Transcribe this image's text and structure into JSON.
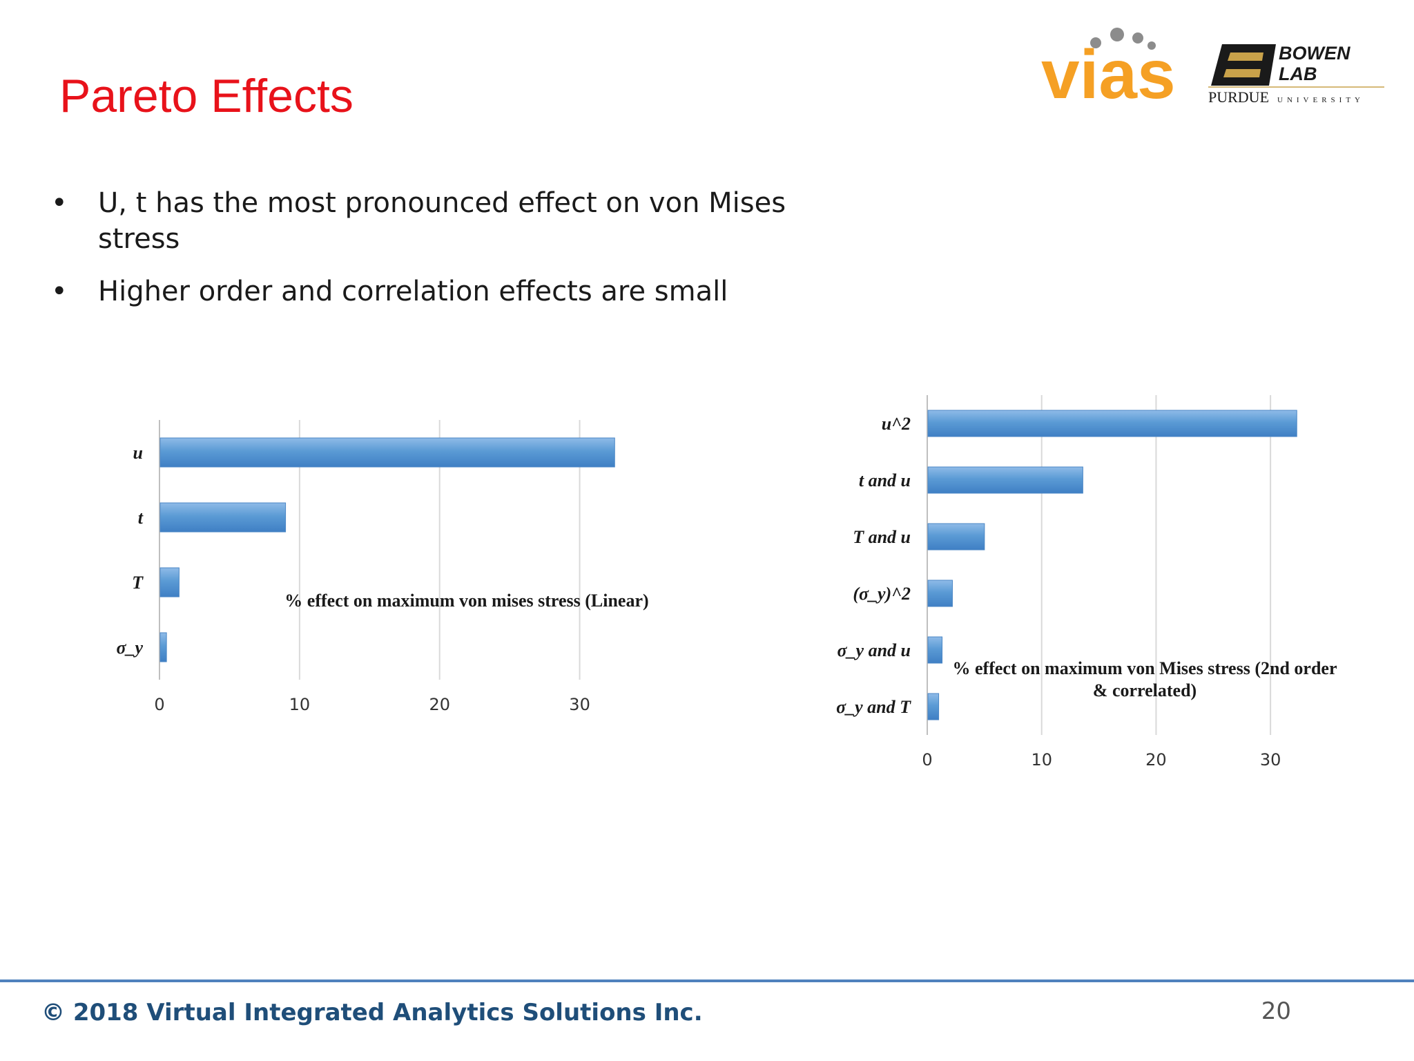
{
  "slide": {
    "title": "Pareto Effects",
    "bullets": [
      "U, t has the most pronounced effect on von Mises stress",
      "Higher order and correlation effects are small"
    ],
    "page_number": "20",
    "footer": "© 2018 Virtual Integrated Analytics Solutions Inc."
  },
  "logos": {
    "vias_text": "vias",
    "bowen_line1": "BOWEN",
    "bowen_line2": "LAB",
    "purdue_text": "PURDUE",
    "university_text": "UNIVERSITY",
    "vias_color": "#f5a024",
    "dot_color": "#8c8c8c"
  },
  "colors": {
    "title": "#e8121a",
    "bar": "#5b9bd5",
    "footer_rule": "#4f81bd",
    "footer_text": "#1f4e79"
  },
  "chart_data": [
    {
      "type": "bar",
      "orientation": "horizontal",
      "title": "% effect on maximum von mises stress (Linear)",
      "categories": [
        "u",
        "t",
        "T",
        "σ_y"
      ],
      "values": [
        32.5,
        9.0,
        1.4,
        0.5
      ],
      "xlim": [
        0,
        35
      ],
      "xticks": [
        0,
        10,
        20,
        30
      ],
      "grid": true
    },
    {
      "type": "bar",
      "orientation": "horizontal",
      "title": "% effect on maximum von Mises stress (2nd order & correlated)",
      "title_lines": [
        "% effect on maximum von Mises stress (2nd order",
        "& correlated)"
      ],
      "categories": [
        "u^2",
        "t and u",
        "T and u",
        "(σ_y)^2",
        "σ_y and u",
        "σ_y and T"
      ],
      "values": [
        32.3,
        13.6,
        5.0,
        2.2,
        1.3,
        1.0
      ],
      "xlim": [
        0,
        35
      ],
      "xticks": [
        0,
        10,
        20,
        30
      ],
      "grid": true
    }
  ]
}
